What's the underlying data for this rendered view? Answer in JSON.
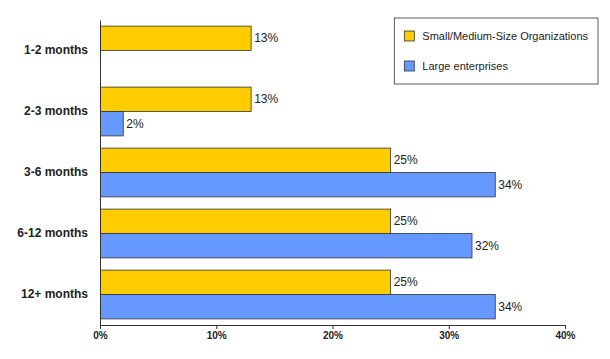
{
  "chart_data": {
    "type": "bar",
    "orientation": "horizontal",
    "categories": [
      "1-2 months",
      "2-3 months",
      "3-6 months",
      "6-12 months",
      "12+ months"
    ],
    "series": [
      {
        "name": "Small/Medium-Size Organizations",
        "color": "#ffcc00",
        "values": [
          13,
          13,
          25,
          25,
          25
        ],
        "value_labels": [
          "13%",
          "13%",
          "25%",
          "25%",
          "25%"
        ]
      },
      {
        "name": "Large enterprises",
        "color": "#6699ff",
        "values": [
          null,
          2,
          34,
          32,
          34
        ],
        "value_labels": [
          null,
          "2%",
          "34%",
          "32%",
          "34%"
        ]
      }
    ],
    "xlim": [
      0,
      40
    ],
    "xticks": [
      {
        "value": 0,
        "label": "0%"
      },
      {
        "value": 10,
        "label": "10%"
      },
      {
        "value": 20,
        "label": "20%"
      },
      {
        "value": 30,
        "label": "30%"
      },
      {
        "value": 40,
        "label": "40%"
      }
    ],
    "grid": false,
    "legend": "top-right",
    "data_labels": true
  }
}
